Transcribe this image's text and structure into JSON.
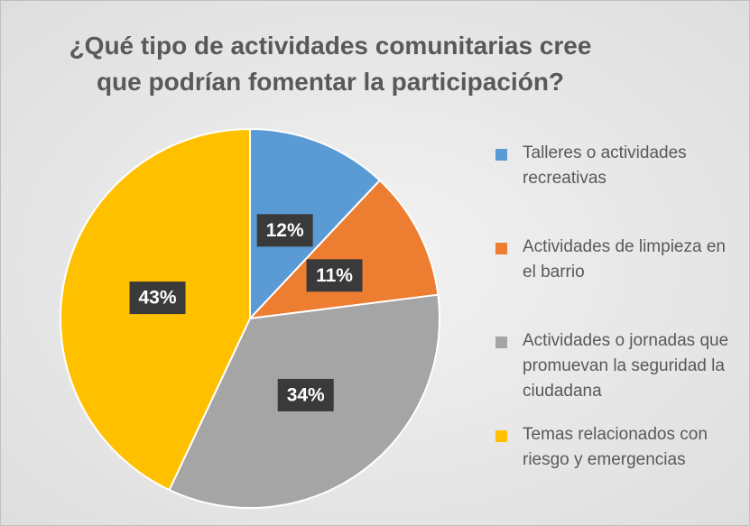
{
  "chart_data": {
    "type": "pie",
    "title": "¿Qué tipo de actividades comunitarias cree que podrían fomentar la participación?",
    "categories": [
      "Talleres o actividades recreativas",
      "Actividades de limpieza en el barrio",
      "Actividades o jornadas que promuevan la seguridad la ciudadana",
      "Temas relacionados con riesgo y emergencias"
    ],
    "values": [
      12,
      11,
      34,
      43
    ],
    "value_labels": [
      "12%",
      "11%",
      "34%",
      "43%"
    ],
    "colors": [
      "#5b9bd5",
      "#ed7d31",
      "#a5a5a5",
      "#ffc000"
    ],
    "legend": "right"
  }
}
